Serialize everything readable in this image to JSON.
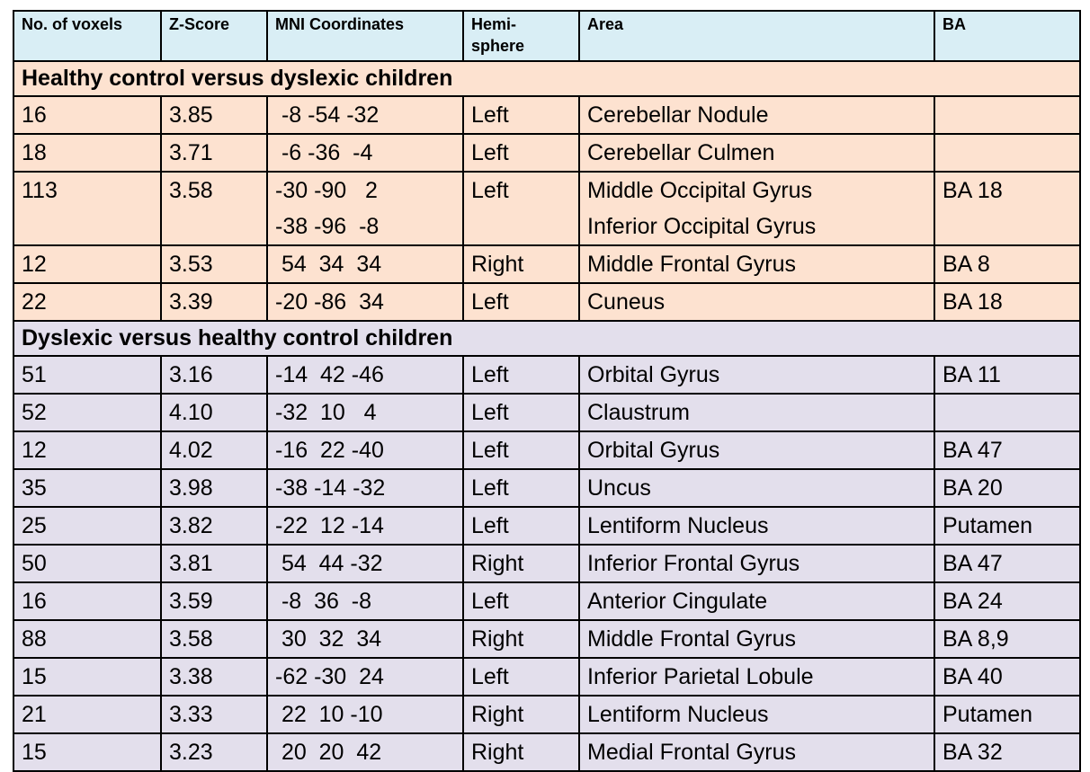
{
  "headers": {
    "voxels": "No. of voxels",
    "zscore": "Z-Score",
    "mni": "MNI Coordinates",
    "hemisphere": "Hemi-\nsphere",
    "area": "Area",
    "ba": "BA"
  },
  "sections": [
    {
      "title": "Healthy control versus dyslexic children",
      "rows": [
        {
          "voxels": "16",
          "z": "3.85",
          "mni": [
            " -8 -54 -32"
          ],
          "hemi": "Left",
          "area": [
            "Cerebellar Nodule"
          ],
          "ba": ""
        },
        {
          "voxels": "18",
          "z": "3.71",
          "mni": [
            " -6 -36  -4"
          ],
          "hemi": "Left",
          "area": [
            "Cerebellar Culmen"
          ],
          "ba": ""
        },
        {
          "voxels": "113",
          "z": "3.58",
          "mni": [
            "-30 -90   2",
            "-38 -96  -8"
          ],
          "hemi": "Left",
          "area": [
            "Middle Occipital Gyrus",
            "Inferior Occipital Gyrus"
          ],
          "ba": "BA 18"
        },
        {
          "voxels": "12",
          "z": "3.53",
          "mni": [
            " 54  34  34"
          ],
          "hemi": "Right",
          "area": [
            "Middle Frontal Gyrus"
          ],
          "ba": "BA 8"
        },
        {
          "voxels": "22",
          "z": "3.39",
          "mni": [
            "-20 -86  34"
          ],
          "hemi": "Left",
          "area": [
            "Cuneus"
          ],
          "ba": "BA 18"
        }
      ]
    },
    {
      "title": "Dyslexic versus healthy control children",
      "rows": [
        {
          "voxels": "51",
          "z": "3.16",
          "mni": [
            "-14  42 -46"
          ],
          "hemi": "Left",
          "area": [
            "Orbital Gyrus"
          ],
          "ba": "BA 11"
        },
        {
          "voxels": "52",
          "z": "4.10",
          "mni": [
            "-32  10   4"
          ],
          "hemi": "Left",
          "area": [
            "Claustrum"
          ],
          "ba": ""
        },
        {
          "voxels": "12",
          "z": "4.02",
          "mni": [
            "-16  22 -40"
          ],
          "hemi": "Left",
          "area": [
            "Orbital Gyrus"
          ],
          "ba": "BA 47"
        },
        {
          "voxels": "35",
          "z": "3.98",
          "mni": [
            "-38 -14 -32"
          ],
          "hemi": "Left",
          "area": [
            "Uncus"
          ],
          "ba": "BA 20"
        },
        {
          "voxels": "25",
          "z": "3.82",
          "mni": [
            "-22  12 -14"
          ],
          "hemi": "Left",
          "area": [
            "Lentiform Nucleus"
          ],
          "ba": "Putamen"
        },
        {
          "voxels": "50",
          "z": "3.81",
          "mni": [
            " 54  44 -32"
          ],
          "hemi": "Right",
          "area": [
            "Inferior Frontal Gyrus"
          ],
          "ba": "BA 47"
        },
        {
          "voxels": "16",
          "z": "3.59",
          "mni": [
            " -8  36  -8"
          ],
          "hemi": "Left",
          "area": [
            "Anterior Cingulate"
          ],
          "ba": "BA 24"
        },
        {
          "voxels": "88",
          "z": "3.58",
          "mni": [
            " 30  32  34"
          ],
          "hemi": "Right",
          "area": [
            "Middle Frontal Gyrus"
          ],
          "ba": "BA 8,9"
        },
        {
          "voxels": "15",
          "z": "3.38",
          "mni": [
            "-62 -30  24"
          ],
          "hemi": "Left",
          "area": [
            "Inferior Parietal Lobule"
          ],
          "ba": "BA 40"
        },
        {
          "voxels": "21",
          "z": "3.33",
          "mni": [
            " 22  10 -10"
          ],
          "hemi": "Right",
          "area": [
            "Lentiform Nucleus"
          ],
          "ba": "Putamen"
        },
        {
          "voxels": "15",
          "z": "3.23",
          "mni": [
            " 20  20  42"
          ],
          "hemi": "Right",
          "area": [
            "Medial Frontal Gyrus"
          ],
          "ba": "BA 32"
        }
      ]
    }
  ],
  "colors": {
    "header_bg": "#d9eef5",
    "section1_bg": "#fde2d0",
    "section2_bg": "#e3dfec",
    "border": "#000000"
  }
}
